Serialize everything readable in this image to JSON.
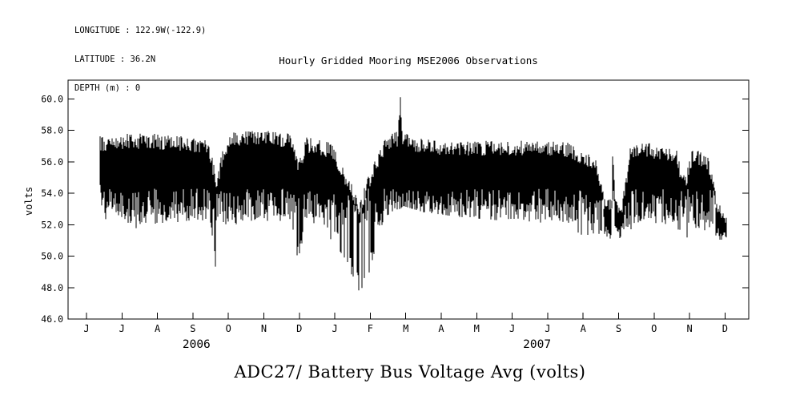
{
  "header": {
    "meta_lines": [
      "LONGITUDE : 122.9W(-122.9)",
      "LATITUDE : 36.2N",
      "DEPTH (m) : 0"
    ]
  },
  "chart_data": {
    "type": "line",
    "title": "Hourly Gridded Mooring MSE2006 Observations",
    "bottom_title": "ADC27/ Battery Bus Voltage Avg (volts)",
    "ylabel": "volts",
    "xlabel": "",
    "ylim": [
      46.0,
      61.2
    ],
    "yticks": [
      46.0,
      48.0,
      50.0,
      52.0,
      54.0,
      56.0,
      58.0,
      60.0
    ],
    "ytick_labels": [
      "46.0",
      "48.0",
      "50.0",
      "52.0",
      "54.0",
      "56.0",
      "58.0",
      "60.0"
    ],
    "x_months": [
      "J",
      "J",
      "A",
      "S",
      "O",
      "N",
      "D",
      "J",
      "F",
      "M",
      "A",
      "M",
      "J",
      "J",
      "A",
      "S",
      "O",
      "N",
      "D"
    ],
    "x_years": [
      {
        "label": "2006",
        "month_index": 3.1
      },
      {
        "label": "2007",
        "month_index": 12.7
      }
    ],
    "x_domain_months": [
      -0.52,
      18.66
    ],
    "grid": false,
    "legend": false,
    "line_color": "#000000",
    "series": {
      "name": "ADC27 Battery Bus Voltage Avg",
      "units": "volts",
      "start": "mid-June 2006",
      "end": "early December 2007",
      "representation": "hourly series too dense to enumerate; values given as [month, min_volts, max_volts] envelope control points, month 0 = June 2006 tick",
      "envelope_month_lo_hi": [
        [
          0.38,
          53.5,
          57.7
        ],
        [
          0.55,
          50.9,
          57.7
        ],
        [
          0.7,
          53.0,
          57.8
        ],
        [
          1.2,
          51.6,
          57.8
        ],
        [
          2.0,
          52.0,
          57.8
        ],
        [
          3.0,
          52.3,
          57.6
        ],
        [
          3.45,
          52.0,
          57.5
        ],
        [
          3.66,
          48.6,
          55.0
        ],
        [
          3.85,
          51.0,
          57.0
        ],
        [
          4.1,
          52.0,
          57.9
        ],
        [
          5.0,
          52.2,
          58.0
        ],
        [
          5.75,
          52.0,
          57.8
        ],
        [
          5.96,
          49.7,
          56.0
        ],
        [
          6.2,
          52.0,
          57.6
        ],
        [
          6.9,
          51.0,
          57.2
        ],
        [
          7.3,
          49.5,
          55.5
        ],
        [
          7.7,
          47.5,
          53.5
        ],
        [
          8.0,
          49.0,
          55.5
        ],
        [
          8.4,
          52.5,
          57.5
        ],
        [
          8.78,
          53.0,
          58.0
        ],
        [
          8.85,
          53.0,
          60.2
        ],
        [
          8.92,
          53.2,
          57.9
        ],
        [
          9.5,
          52.8,
          57.5
        ],
        [
          10.5,
          52.5,
          57.4
        ],
        [
          11.5,
          52.3,
          57.4
        ],
        [
          12.5,
          52.2,
          57.4
        ],
        [
          13.5,
          52.0,
          57.3
        ],
        [
          14.35,
          50.4,
          56.5
        ],
        [
          14.6,
          51.0,
          53.8
        ],
        [
          14.8,
          51.0,
          53.6
        ],
        [
          14.84,
          51.0,
          57.4
        ],
        [
          14.9,
          51.0,
          53.6
        ],
        [
          15.1,
          51.2,
          53.5
        ],
        [
          15.35,
          51.5,
          57.3
        ],
        [
          16.0,
          52.0,
          57.2
        ],
        [
          16.6,
          51.8,
          57.0
        ],
        [
          16.86,
          49.3,
          55.0
        ],
        [
          17.1,
          51.8,
          57.0
        ],
        [
          17.5,
          51.5,
          56.5
        ],
        [
          17.8,
          51.0,
          53.5
        ],
        [
          18.05,
          51.0,
          52.5
        ]
      ]
    },
    "annotations": [
      "peak spike to ~60.2 V in late February 2007",
      "dip to ~48.6 V in late September 2006",
      "dip to ~49.7 V in early December 2006",
      "deep dip to ~47.5 V in late January-February 2007",
      "quiet low band ~51-53.5 V in September 2007",
      "dip to ~49.3 V in early November 2007",
      "typical band oscillates ~52-58 V"
    ]
  }
}
